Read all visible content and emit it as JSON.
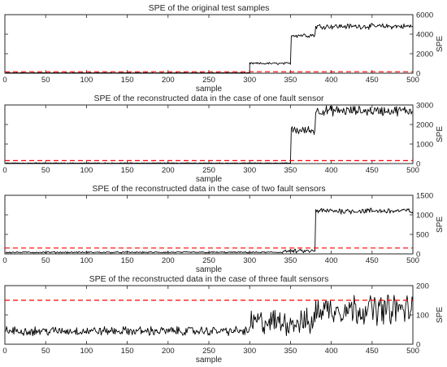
{
  "chart_data": [
    {
      "type": "line",
      "title": "SPE of the original test samples",
      "xlabel": "sample",
      "ylabel": "SPE",
      "xlim": [
        0,
        500
      ],
      "ylim": [
        0,
        6000
      ],
      "xticks": [
        0,
        50,
        100,
        150,
        200,
        250,
        300,
        350,
        400,
        450,
        500
      ],
      "yticks": [
        0,
        2000,
        4000,
        6000
      ],
      "y_axis_side": "right",
      "grid": false,
      "threshold": {
        "value": 150,
        "color": "#ff0000",
        "style": "dashed"
      },
      "series": [
        {
          "segments": [
            {
              "x": [
                1,
                300
              ],
              "base": 40,
              "noise": 20
            },
            {
              "x": [
                300,
                350
              ],
              "base": 1000,
              "noise": 90
            },
            {
              "x": [
                351,
                380
              ],
              "base": 3900,
              "noise": 200
            },
            {
              "x": [
                381,
                500
              ],
              "base": 4800,
              "noise": 220
            }
          ]
        }
      ]
    },
    {
      "type": "line",
      "title": "SPE of the reconstructed data in the case of one fault sensor",
      "xlabel": "sample",
      "ylabel": "SPE",
      "xlim": [
        0,
        500
      ],
      "ylim": [
        0,
        3000
      ],
      "xticks": [
        0,
        50,
        100,
        150,
        200,
        250,
        300,
        350,
        400,
        450,
        500
      ],
      "yticks": [
        0,
        1000,
        2000,
        3000
      ],
      "y_axis_side": "right",
      "grid": false,
      "threshold": {
        "value": 150,
        "color": "#ff0000",
        "style": "dashed"
      },
      "series": [
        {
          "segments": [
            {
              "x": [
                1,
                350
              ],
              "base": 25,
              "noise": 12
            },
            {
              "x": [
                351,
                380
              ],
              "base": 1700,
              "noise": 180
            },
            {
              "x": [
                381,
                500
              ],
              "base": 2700,
              "noise": 200
            }
          ]
        }
      ]
    },
    {
      "type": "line",
      "title": "SPE of the reconstructed data in the case of two fault sensors",
      "xlabel": "sample",
      "ylabel": "SPE",
      "xlim": [
        0,
        500
      ],
      "ylim": [
        0,
        1500
      ],
      "xticks": [
        0,
        50,
        100,
        150,
        200,
        250,
        300,
        350,
        400,
        450,
        500
      ],
      "yticks": [
        0,
        500,
        1000,
        1500
      ],
      "y_axis_side": "right",
      "grid": false,
      "threshold": {
        "value": 150,
        "color": "#ff0000",
        "style": "dashed"
      },
      "series": [
        {
          "segments": [
            {
              "x": [
                1,
                340
              ],
              "base": 40,
              "noise": 15
            },
            {
              "x": [
                341,
                380
              ],
              "base": 70,
              "noise": 40
            },
            {
              "x": [
                381,
                500
              ],
              "base": 1100,
              "noise": 60
            }
          ]
        }
      ]
    },
    {
      "type": "line",
      "title": "SPE of the reconstructed data in the case of three fault sensors",
      "xlabel": "sample",
      "ylabel": "SPE",
      "xlim": [
        0,
        500
      ],
      "ylim": [
        0,
        200
      ],
      "xticks": [
        0,
        50,
        100,
        150,
        200,
        250,
        300,
        350,
        400,
        450,
        500
      ],
      "yticks": [
        0,
        100,
        200
      ],
      "y_axis_side": "right",
      "grid": false,
      "threshold": {
        "value": 150,
        "color": "#ff0000",
        "style": "dashed"
      },
      "series": [
        {
          "segments": [
            {
              "x": [
                1,
                300
              ],
              "base": 45,
              "noise": 12
            },
            {
              "x": [
                301,
                380
              ],
              "base": 75,
              "noise": 35
            },
            {
              "x": [
                381,
                500
              ],
              "base": 120,
              "noise": 40
            }
          ]
        }
      ]
    }
  ]
}
